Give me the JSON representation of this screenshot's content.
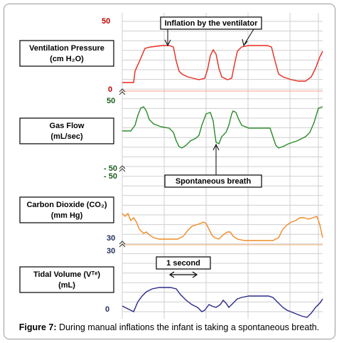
{
  "panels": {
    "pressure": {
      "label_line1": "Ventilation Pressure",
      "label_line2": "(cm H₂O)",
      "top": "50",
      "bottom": "0",
      "color": "#e8281e"
    },
    "flow": {
      "label_line1": "Gas Flow",
      "label_line2": "(mL/sec)",
      "top": "50",
      "bottom": "- 50",
      "color": "#2a8a2a"
    },
    "co2": {
      "label_line1": "Carbon Dioxide (CO₂)",
      "label_line2": "(mm Hg)",
      "top": "- 50",
      "bottom": "30",
      "color": "#f08a24"
    },
    "volume": {
      "label_line1": "Tidal Volume (Vᵀᵉ)",
      "label_line2": "(mL)",
      "top": "30",
      "bottom": "0",
      "color": "#2b2a8a"
    }
  },
  "annotations": {
    "inflation": "Inflation by the ventilator",
    "spontaneous": "Spontaneous breath",
    "one_second": "1 second"
  },
  "caption": {
    "prefix": "Figure 7:",
    "text": " During manual inflations the infant is taking a spontaneous breath."
  }
}
